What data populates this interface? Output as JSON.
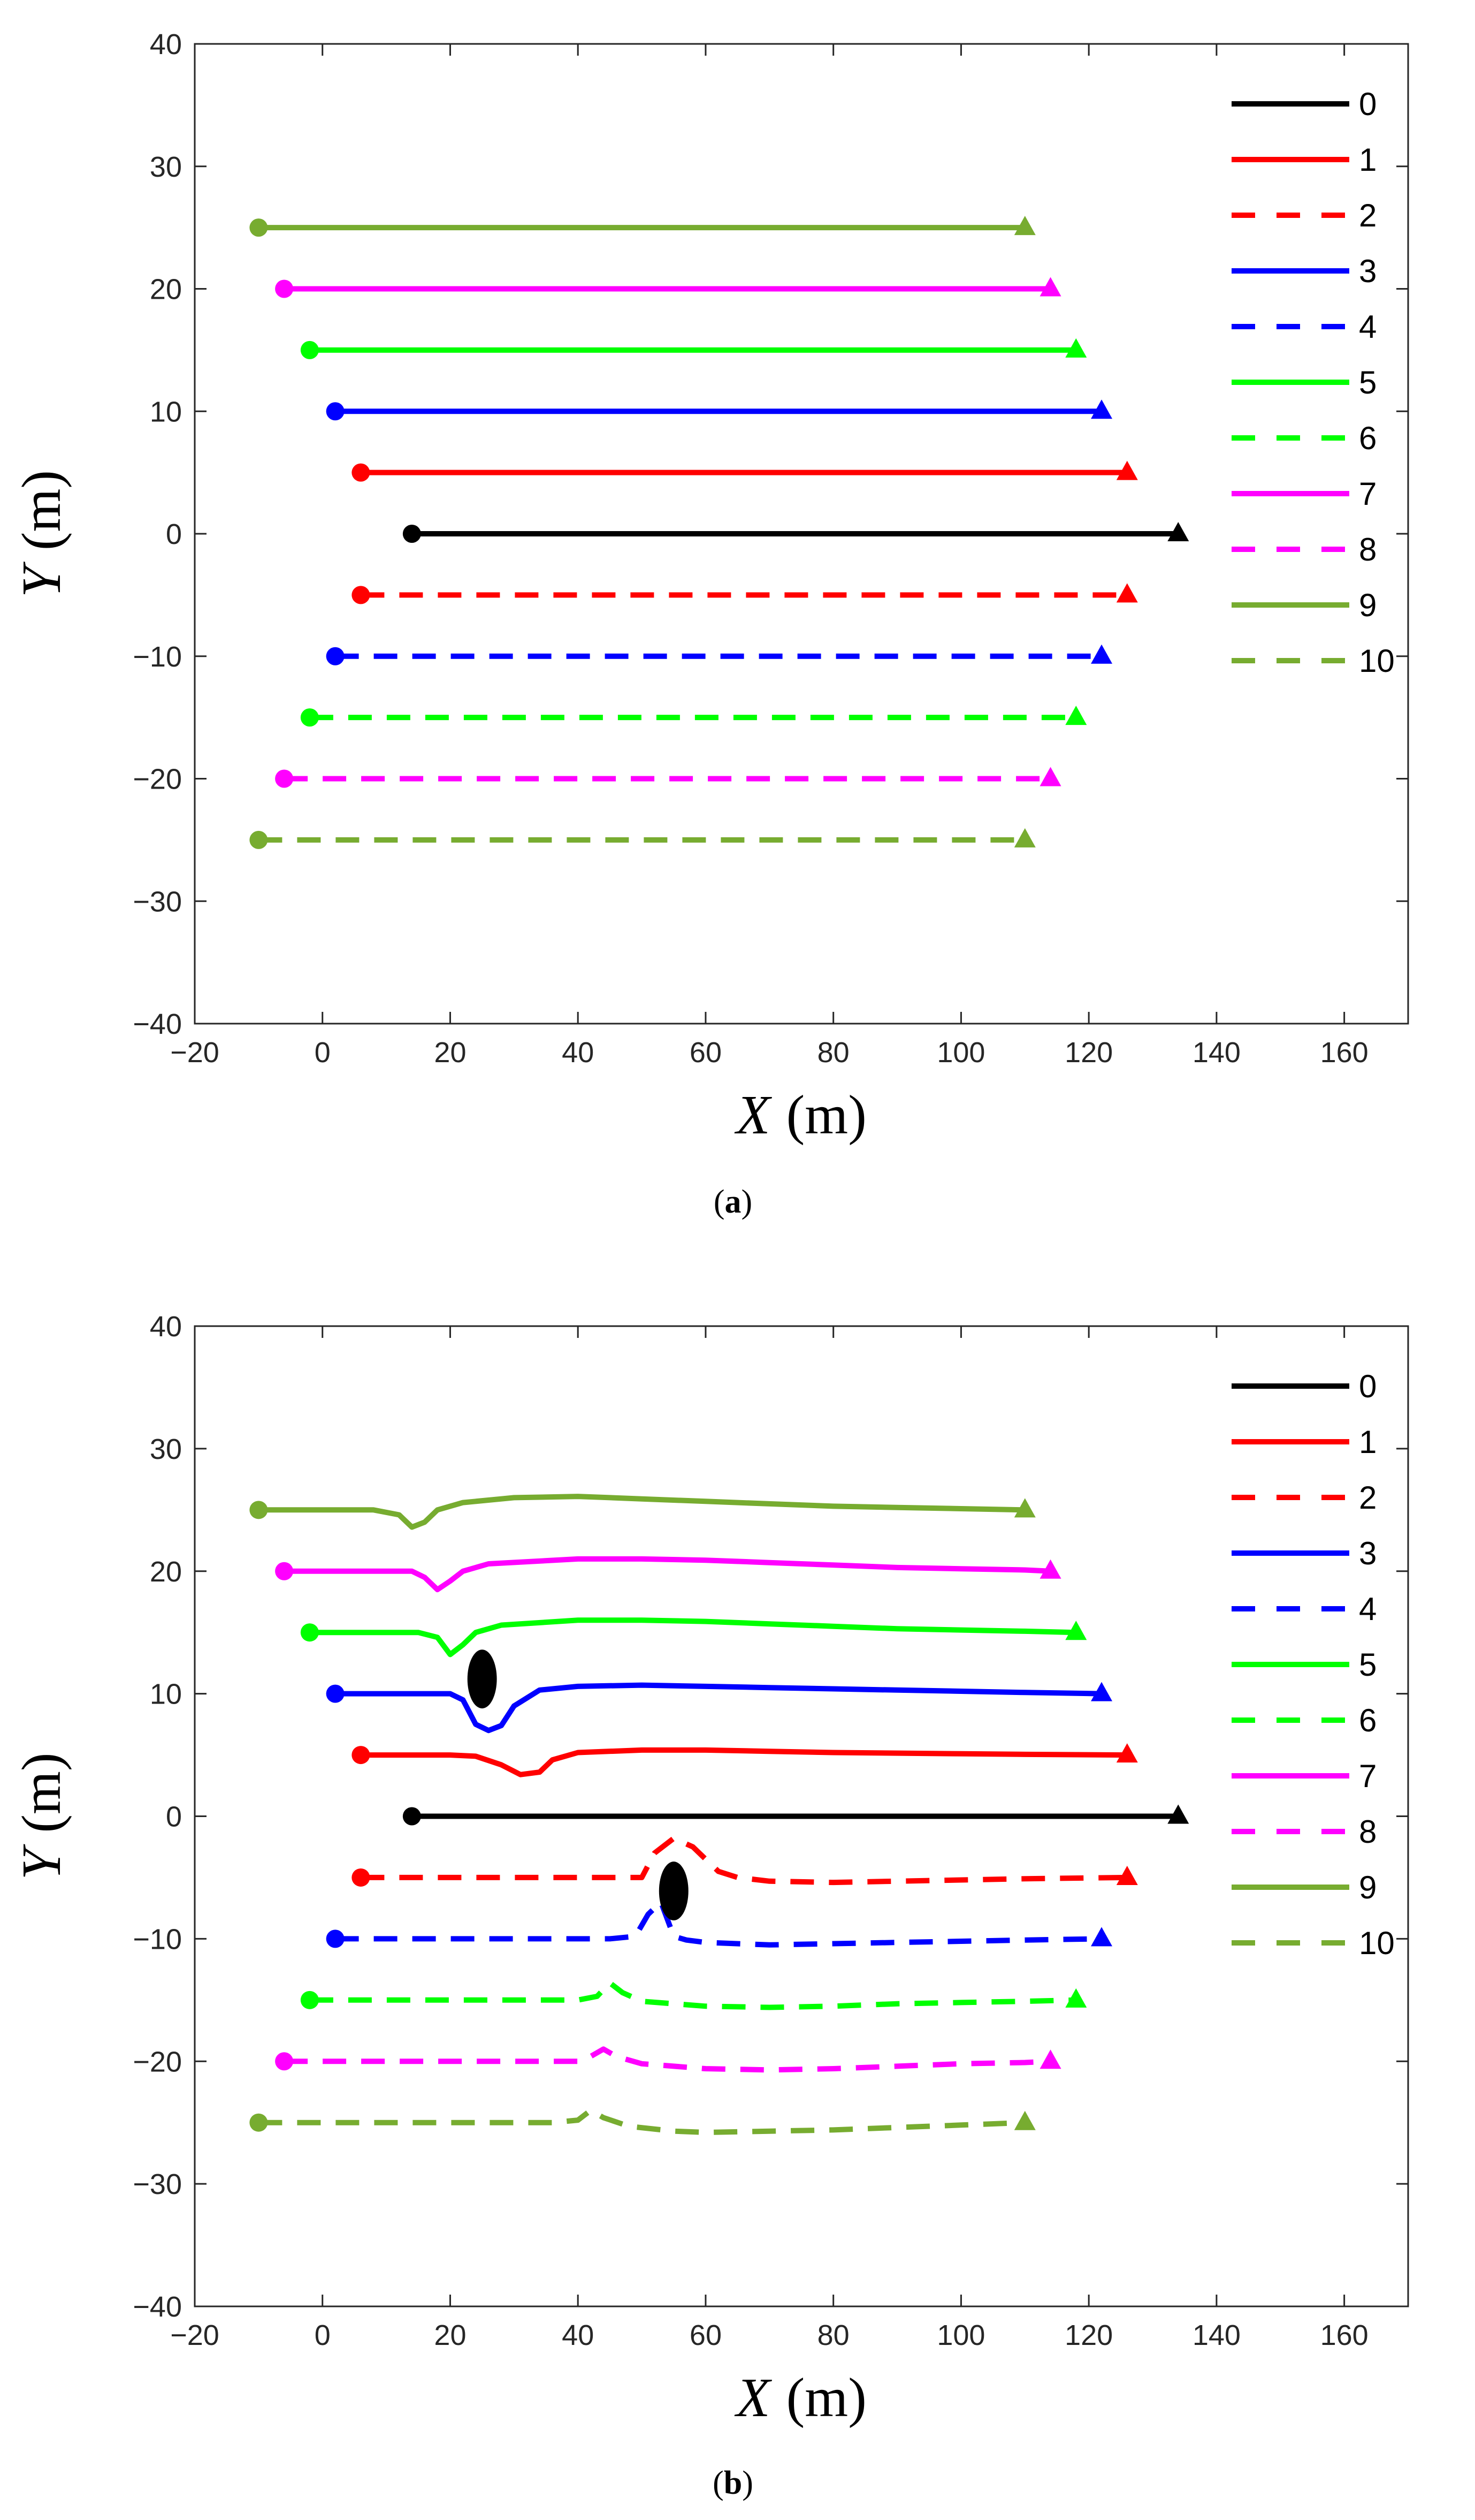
{
  "chart_data": [
    {
      "type": "line",
      "panel": "(a)",
      "subcaption_open": "(",
      "subcaption_letter": "a",
      "subcaption_close": ")",
      "xlabel": "X",
      "ylabel": "Y",
      "unit": "(m)",
      "xlim": [
        -20,
        170
      ],
      "ylim": [
        -40,
        40
      ],
      "xticks": [
        -20,
        0,
        20,
        40,
        60,
        80,
        100,
        120,
        140,
        160
      ],
      "yticks": [
        -40,
        -30,
        -20,
        -10,
        0,
        10,
        20,
        30,
        40
      ],
      "legend_position": "top-right",
      "series": [
        {
          "name": "0",
          "color": "#000000",
          "dashed": false,
          "x": [
            14,
            134
          ],
          "y": [
            0,
            0
          ]
        },
        {
          "name": "1",
          "color": "#ff0000",
          "dashed": false,
          "x": [
            6,
            126
          ],
          "y": [
            5,
            5
          ]
        },
        {
          "name": "2",
          "color": "#ff0000",
          "dashed": true,
          "x": [
            6,
            126
          ],
          "y": [
            -5,
            -5
          ]
        },
        {
          "name": "3",
          "color": "#0000ff",
          "dashed": false,
          "x": [
            2,
            122
          ],
          "y": [
            10,
            10
          ]
        },
        {
          "name": "4",
          "color": "#0000ff",
          "dashed": true,
          "x": [
            2,
            122
          ],
          "y": [
            -10,
            -10
          ]
        },
        {
          "name": "5",
          "color": "#00ff00",
          "dashed": false,
          "x": [
            -2,
            118
          ],
          "y": [
            15,
            15
          ]
        },
        {
          "name": "6",
          "color": "#00ff00",
          "dashed": true,
          "x": [
            -2,
            118
          ],
          "y": [
            -15,
            -15
          ]
        },
        {
          "name": "7",
          "color": "#ff00ff",
          "dashed": false,
          "x": [
            -6,
            114
          ],
          "y": [
            20,
            20
          ]
        },
        {
          "name": "8",
          "color": "#ff00ff",
          "dashed": true,
          "x": [
            -6,
            114
          ],
          "y": [
            -20,
            -20
          ]
        },
        {
          "name": "9",
          "color": "#77ac30",
          "dashed": false,
          "x": [
            -10,
            110
          ],
          "y": [
            25,
            25
          ]
        },
        {
          "name": "10",
          "color": "#77ac30",
          "dashed": true,
          "x": [
            -10,
            110
          ],
          "y": [
            -25,
            -25
          ]
        }
      ],
      "obstacles": []
    },
    {
      "type": "line",
      "panel": "(b)",
      "subcaption_open": "(",
      "subcaption_letter": "b",
      "subcaption_close": ")",
      "xlabel": "X",
      "ylabel": "Y",
      "unit": "(m)",
      "xlim": [
        -20,
        170
      ],
      "ylim": [
        -40,
        40
      ],
      "xticks": [
        -20,
        0,
        20,
        40,
        60,
        80,
        100,
        120,
        140,
        160
      ],
      "yticks": [
        -40,
        -30,
        -20,
        -10,
        0,
        10,
        20,
        30,
        40
      ],
      "legend_position": "top-right",
      "series": [
        {
          "name": "0",
          "color": "#000000",
          "dashed": false,
          "x": [
            14,
            134
          ],
          "y": [
            0,
            0
          ]
        },
        {
          "name": "1",
          "color": "#ff0000",
          "dashed": false,
          "x": [
            6,
            20,
            24,
            28,
            31,
            34,
            36,
            40,
            50,
            60,
            70,
            80,
            90,
            100,
            110,
            126
          ],
          "y": [
            5,
            5,
            4.9,
            4.2,
            3.4,
            3.6,
            4.6,
            5.2,
            5.4,
            5.4,
            5.3,
            5.2,
            5.15,
            5.1,
            5.05,
            5
          ]
        },
        {
          "name": "2",
          "color": "#ff0000",
          "dashed": true,
          "x": [
            6,
            30,
            45,
            50,
            52,
            55,
            58,
            60,
            62,
            65,
            70,
            80,
            90,
            100,
            110,
            126
          ],
          "y": [
            -5,
            -5,
            -5,
            -5,
            -3,
            -1.8,
            -2.5,
            -3.5,
            -4.5,
            -5,
            -5.3,
            -5.4,
            -5.3,
            -5.2,
            -5.1,
            -5
          ]
        },
        {
          "name": "3",
          "color": "#0000ff",
          "dashed": false,
          "x": [
            2,
            20,
            22,
            24,
            26,
            28,
            30,
            34,
            40,
            50,
            60,
            70,
            80,
            90,
            100,
            110,
            122
          ],
          "y": [
            10,
            10,
            9.5,
            7.5,
            7,
            7.4,
            9,
            10.3,
            10.6,
            10.7,
            10.6,
            10.5,
            10.4,
            10.3,
            10.2,
            10.1,
            10
          ]
        },
        {
          "name": "4",
          "color": "#0000ff",
          "dashed": true,
          "x": [
            2,
            30,
            45,
            49,
            51,
            53,
            55,
            57,
            60,
            70,
            80,
            90,
            100,
            110,
            122
          ],
          "y": [
            -10,
            -10,
            -10,
            -9.8,
            -8,
            -7,
            -9.8,
            -10.1,
            -10.3,
            -10.5,
            -10.4,
            -10.3,
            -10.2,
            -10.1,
            -10
          ]
        },
        {
          "name": "5",
          "color": "#00ff00",
          "dashed": false,
          "x": [
            -2,
            15,
            18,
            20,
            22,
            24,
            28,
            40,
            50,
            60,
            70,
            80,
            90,
            100,
            110,
            118
          ],
          "y": [
            15,
            15,
            14.6,
            13.2,
            14,
            15,
            15.6,
            16,
            16,
            15.9,
            15.7,
            15.5,
            15.3,
            15.2,
            15.1,
            15
          ]
        },
        {
          "name": "6",
          "color": "#00ff00",
          "dashed": true,
          "x": [
            -2,
            30,
            40,
            43,
            45,
            47,
            50,
            60,
            70,
            80,
            90,
            100,
            110,
            118
          ],
          "y": [
            -15,
            -15,
            -15,
            -14.7,
            -13.6,
            -14.4,
            -15.1,
            -15.5,
            -15.6,
            -15.5,
            -15.3,
            -15.2,
            -15.1,
            -15
          ]
        },
        {
          "name": "7",
          "color": "#ff00ff",
          "dashed": false,
          "x": [
            -6,
            10,
            14,
            16,
            18,
            20,
            22,
            26,
            40,
            50,
            60,
            70,
            80,
            90,
            100,
            110,
            114
          ],
          "y": [
            20,
            20,
            20,
            19.5,
            18.5,
            19.2,
            20,
            20.6,
            21,
            21,
            20.9,
            20.7,
            20.5,
            20.3,
            20.2,
            20.1,
            20
          ]
        },
        {
          "name": "8",
          "color": "#ff00ff",
          "dashed": true,
          "x": [
            -6,
            30,
            40,
            42,
            44,
            46,
            50,
            60,
            70,
            80,
            90,
            100,
            110,
            114
          ],
          "y": [
            -20,
            -20,
            -20,
            -19.6,
            -19,
            -19.6,
            -20.2,
            -20.6,
            -20.7,
            -20.6,
            -20.4,
            -20.2,
            -20.1,
            -20
          ]
        },
        {
          "name": "9",
          "color": "#77ac30",
          "dashed": false,
          "x": [
            -10,
            8,
            12,
            14,
            16,
            18,
            22,
            30,
            40,
            50,
            60,
            70,
            80,
            90,
            100,
            110
          ],
          "y": [
            25,
            25,
            24.6,
            23.6,
            24,
            25,
            25.6,
            26,
            26.1,
            25.9,
            25.7,
            25.5,
            25.3,
            25.2,
            25.1,
            25
          ]
        },
        {
          "name": "10",
          "color": "#77ac30",
          "dashed": true,
          "x": [
            -10,
            20,
            36,
            40,
            42,
            44,
            48,
            55,
            60,
            70,
            80,
            90,
            100,
            110
          ],
          "y": [
            -25,
            -25,
            -25,
            -24.8,
            -24,
            -24.6,
            -25.3,
            -25.7,
            -25.8,
            -25.7,
            -25.6,
            -25.4,
            -25.2,
            -25
          ]
        }
      ],
      "obstacles": [
        {
          "x": 25,
          "y": 11.2,
          "rx": 2.3,
          "ry": 2.4
        },
        {
          "x": 55,
          "y": -6.1,
          "rx": 2.3,
          "ry": 2.4
        }
      ]
    }
  ]
}
